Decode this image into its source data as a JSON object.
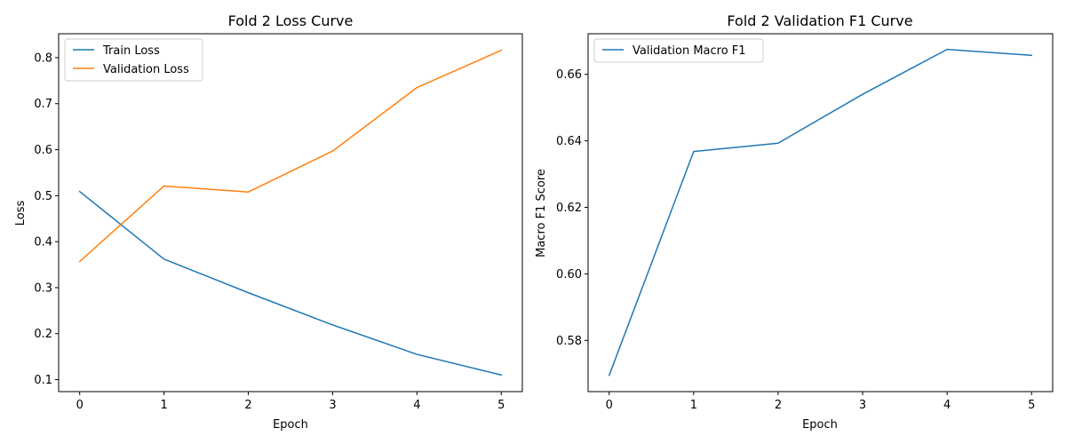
{
  "chart_data": [
    {
      "type": "line",
      "title": "Fold 2 Loss Curve",
      "xlabel": "Epoch",
      "ylabel": "Loss",
      "x": [
        0,
        1,
        2,
        3,
        4,
        5
      ],
      "xticks": [
        "0",
        "1",
        "2",
        "3",
        "4",
        "5"
      ],
      "yticks": [
        "0.1",
        "0.2",
        "0.3",
        "0.4",
        "0.5",
        "0.6",
        "0.7",
        "0.8"
      ],
      "xlim": [
        -0.25,
        5.25
      ],
      "ylim": [
        0.074,
        0.852
      ],
      "grid": false,
      "legend": "upper left",
      "series": [
        {
          "name": "Train Loss",
          "color": "#1f77b4",
          "values": [
            0.509,
            0.362,
            0.289,
            0.219,
            0.155,
            0.11
          ]
        },
        {
          "name": "Validation Loss",
          "color": "#ff7f0e",
          "values": [
            0.357,
            0.521,
            0.508,
            0.597,
            0.735,
            0.816
          ]
        }
      ]
    },
    {
      "type": "line",
      "title": "Fold 2 Validation F1 Curve",
      "xlabel": "Epoch",
      "ylabel": "Macro F1 Score",
      "x": [
        0,
        1,
        2,
        3,
        4,
        5
      ],
      "xticks": [
        "0",
        "1",
        "2",
        "3",
        "4",
        "5"
      ],
      "yticks": [
        "0.58",
        "0.60",
        "0.62",
        "0.64",
        "0.66"
      ],
      "xlim": [
        -0.25,
        5.25
      ],
      "ylim": [
        0.5646,
        0.6722
      ],
      "grid": false,
      "legend": "upper left",
      "series": [
        {
          "name": "Validation Macro F1",
          "color": "#1f77b4",
          "values": [
            0.5695,
            0.6368,
            0.6393,
            0.654,
            0.6675,
            0.6657
          ]
        }
      ]
    }
  ]
}
